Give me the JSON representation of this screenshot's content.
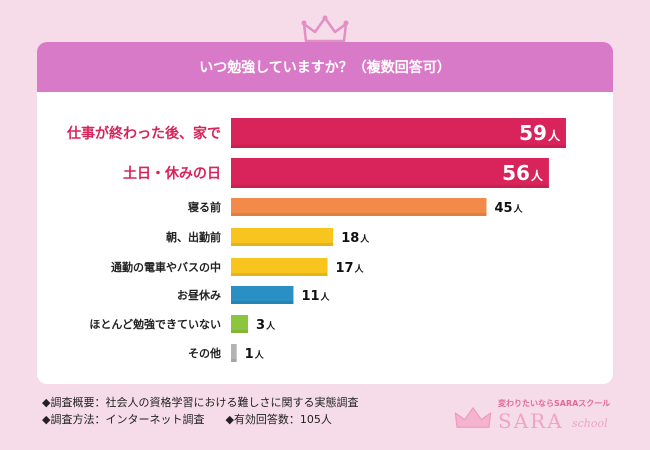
{
  "chart_data": {
    "type": "bar",
    "orientation": "horizontal",
    "title": "いつ勉強していますか？（複数回答可）",
    "unit": "人",
    "categories": [
      "仕事が終わった後、家で",
      "土日・休みの日",
      "寝る前",
      "朝、出勤前",
      "通勤の電車やバスの中",
      "お昼休み",
      "ほとんど勉強できていない",
      "その他"
    ],
    "values": [
      59,
      56,
      45,
      18,
      17,
      11,
      3,
      1
    ],
    "value_labels": [
      "59",
      "56",
      "45",
      "18",
      "17",
      "11",
      "3",
      "1"
    ],
    "xlim": [
      0,
      62
    ],
    "grid": false,
    "legend": "none",
    "colors": [
      "#d8245a",
      "#d8245a",
      "#f28a49",
      "#f7c51d",
      "#f7c51d",
      "#2a8fc2",
      "#8cc63f",
      "#b3b3b3"
    ],
    "highlight_color": "#d8245a"
  },
  "footer": {
    "line1": "◆調査概要：社会人の資格学習における難しさに関する実態調査",
    "line2a": "◆調査方法：インターネット調査",
    "line2b": "◆有効回答数：105人"
  },
  "brand": {
    "tagline": "変わりたいならSARAスクール",
    "name": "SARA",
    "suffix": "school"
  },
  "colors": {
    "background": "#f6dce8",
    "header": "#d97ac8",
    "crown": "#e38fc6"
  }
}
